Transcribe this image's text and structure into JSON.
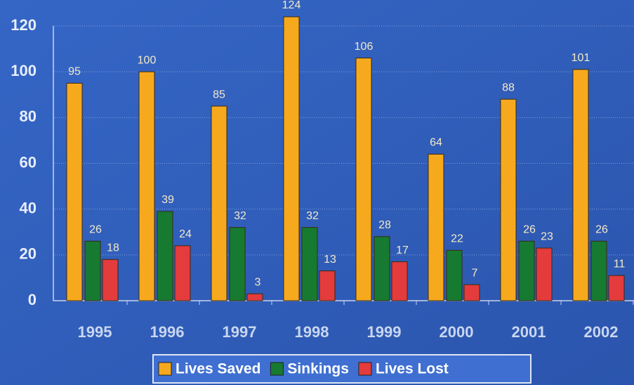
{
  "chart_data": {
    "type": "bar",
    "categories": [
      "1995",
      "1996",
      "1997",
      "1998",
      "1999",
      "2000",
      "2001",
      "2002"
    ],
    "series": [
      {
        "name": "Lives Saved",
        "color": "#f7a91e",
        "values": [
          95,
          100,
          85,
          124,
          106,
          64,
          88,
          101
        ]
      },
      {
        "name": "Sinkings",
        "color": "#167a31",
        "values": [
          26,
          39,
          32,
          32,
          28,
          22,
          26,
          26
        ]
      },
      {
        "name": "Lives Lost",
        "color": "#e43b3d",
        "values": [
          18,
          24,
          3,
          13,
          17,
          7,
          23,
          11
        ]
      }
    ],
    "ylim": [
      0,
      120
    ],
    "yticks": [
      0,
      20,
      40,
      60,
      80,
      100,
      120
    ],
    "grid": true,
    "legend": "bottom"
  }
}
